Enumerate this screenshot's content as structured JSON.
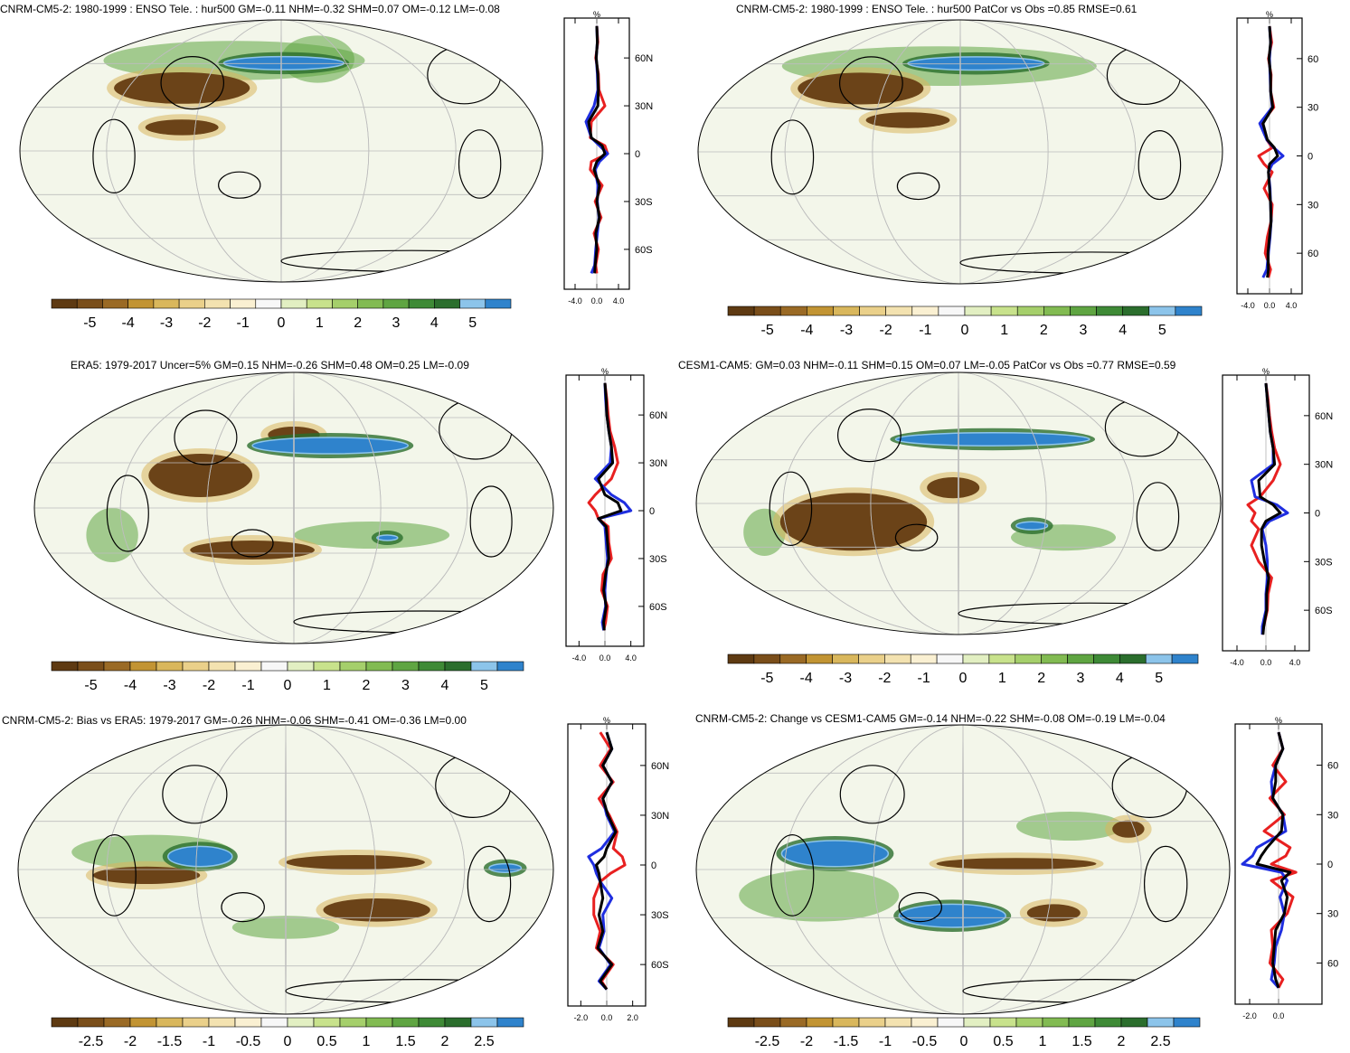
{
  "palette": {
    "colors": [
      "#5e3a12",
      "#7a4e1a",
      "#9a6a25",
      "#c29433",
      "#d9b75c",
      "#ead08a",
      "#f3e2b0",
      "#faf0d2",
      "#f7f7f7",
      "#e2efc2",
      "#c8e28c",
      "#a5cf6b",
      "#82bb52",
      "#5fa542",
      "#3e8a36",
      "#2b6e2d",
      "#8cc4ea",
      "#2f83cc"
    ],
    "neg_blob": "#6b4318",
    "pos_blob": "#2f83cc",
    "green_band": "#5fa542",
    "ocean_base": "#f3f6ea",
    "grid": "#bdbdbd",
    "profile_red": "#e82020",
    "profile_blue": "#1f2ee0",
    "profile_black": "#000000"
  },
  "panels": [
    {
      "id": "model",
      "title": "CNRM-CM5-2: 1980-1999 : ENSO Tele. : hur500 GM=-0.11 NHM=-0.32 SHM=0.07 OM=-0.12 LM=-0.08",
      "colorbar_labels": [
        "-5",
        "-4",
        "-3",
        "-2",
        "-1",
        "0",
        "1",
        "2",
        "3",
        "4",
        "5"
      ],
      "profile": {
        "unit": "%",
        "xticks": [
          "-4.0",
          "0.0",
          "4.0"
        ],
        "yticks": [
          "60N",
          "30N",
          "0",
          "30S",
          "60S"
        ],
        "xlim": [
          -6,
          6
        ]
      }
    },
    {
      "id": "model_patcor",
      "title": "CNRM-CM5-2: 1980-1999 : ENSO Tele. : hur500 PatCor vs Obs =0.85 RMSE=0.61",
      "colorbar_labels": [
        "-5",
        "-4",
        "-3",
        "-2",
        "-1",
        "0",
        "1",
        "2",
        "3",
        "4",
        "5"
      ],
      "profile": {
        "unit": "%",
        "xticks": [
          "-4.0",
          "0.0",
          "4.0"
        ],
        "yticks": [
          "60",
          "30",
          "0",
          "30",
          "60"
        ],
        "xlim": [
          -6,
          6
        ]
      }
    },
    {
      "id": "era5",
      "title": "ERA5: 1979-2017 Uncer=5% GM=0.15 NHM=-0.26 SHM=0.48 OM=0.25 LM=-0.09",
      "colorbar_labels": [
        "-5",
        "-4",
        "-3",
        "-2",
        "-1",
        "0",
        "1",
        "2",
        "3",
        "4",
        "5"
      ],
      "profile": {
        "unit": "%",
        "xticks": [
          "-4.0",
          "0.0",
          "4.0"
        ],
        "yticks": [
          "60N",
          "30N",
          "0",
          "30S",
          "60S"
        ],
        "xlim": [
          -6,
          6
        ]
      }
    },
    {
      "id": "cesm",
      "title": "CESM1-CAM5: GM=0.03 NHM=-0.11 SHM=0.15 OM=0.07 LM=-0.05 PatCor vs Obs =0.77 RMSE=0.59",
      "colorbar_labels": [
        "-5",
        "-4",
        "-3",
        "-2",
        "-1",
        "0",
        "1",
        "2",
        "3",
        "4",
        "5"
      ],
      "profile": {
        "unit": "%",
        "xticks": [
          "-4.0",
          "0.0",
          "4.0"
        ],
        "yticks": [
          "60N",
          "30N",
          "0",
          "30S",
          "60S"
        ],
        "xlim": [
          -6,
          6
        ]
      }
    },
    {
      "id": "bias",
      "title": "CNRM-CM5-2: Bias vs ERA5: 1979-2017 GM=-0.26 NHM=-0.06 SHM=-0.41 OM=-0.36 LM=0.00",
      "colorbar_labels": [
        "-2.5",
        "-2",
        "-1.5",
        "-1",
        "-0.5",
        "0",
        "0.5",
        "1",
        "1.5",
        "2",
        "2.5"
      ],
      "profile": {
        "unit": "%",
        "xticks": [
          "-2.0",
          "0.0",
          "2.0"
        ],
        "yticks": [
          "60N",
          "30N",
          "0",
          "30S",
          "60S"
        ],
        "xlim": [
          -3,
          3
        ]
      }
    },
    {
      "id": "change",
      "title": "CNRM-CM5-2: Change vs CESM1-CAM5 GM=-0.14 NHM=-0.22 SHM=-0.08 OM=-0.19 LM=-0.04",
      "colorbar_labels": [
        "-2.5",
        "-2",
        "-1.5",
        "-1",
        "-0.5",
        "0",
        "0.5",
        "1",
        "1.5",
        "2",
        "2.5"
      ],
      "profile": {
        "unit": "%",
        "xticks": [
          "-2.0",
          "0.0"
        ],
        "yticks": [
          "60",
          "30",
          "0",
          "30",
          "60"
        ],
        "xlim": [
          -3,
          3
        ]
      }
    }
  ],
  "chart_data": [
    {
      "type": "heatmap",
      "title": "CNRM-CM5-2: 1980-1999 : ENSO Tele. : hur500 GM=-0.11 NHM=-0.32 SHM=0.07 OM=-0.12 LM=-0.08",
      "colorbar": [
        "-5",
        "-4",
        "-3",
        "-2",
        "-1",
        "0",
        "1",
        "2",
        "3",
        "4",
        "5"
      ],
      "zonal_mean_profile": {
        "lat": [
          80,
          70,
          60,
          50,
          40,
          30,
          20,
          10,
          5,
          0,
          -5,
          -10,
          -20,
          -30,
          -40,
          -50,
          -60,
          -70,
          -75
        ],
        "red": [
          0,
          0.2,
          -0.2,
          0.3,
          0.4,
          1.5,
          -1,
          -1.2,
          1.5,
          2,
          -1,
          -1.2,
          1,
          -0.3,
          0.8,
          -0.5,
          0.3,
          -0.2,
          0
        ],
        "blue": [
          0,
          0.1,
          -0.1,
          0.1,
          0.2,
          -0.5,
          -2,
          -1,
          0.5,
          2,
          0.5,
          -0.3,
          0.2,
          0.1,
          0.4,
          0.1,
          -0.2,
          -0.4,
          -1
        ],
        "black": [
          0,
          0.1,
          -0.1,
          0.2,
          0.3,
          0.2,
          -1.5,
          -1,
          1,
          1.5,
          0,
          -0.5,
          0.5,
          0,
          0.5,
          -0.2,
          0,
          -0.3,
          -0.4
        ]
      }
    },
    {
      "type": "heatmap",
      "title": "CNRM-CM5-2: 1980-1999 : ENSO Tele. : hur500 PatCor vs Obs =0.85 RMSE=0.61",
      "colorbar": [
        "-5",
        "-4",
        "-3",
        "-2",
        "-1",
        "0",
        "1",
        "2",
        "3",
        "4",
        "5"
      ],
      "zonal_mean_profile": {
        "lat": [
          80,
          70,
          60,
          50,
          40,
          30,
          20,
          10,
          5,
          0,
          -5,
          -10,
          -20,
          -30,
          -40,
          -50,
          -60,
          -70,
          -75
        ],
        "red": [
          0,
          0.4,
          -0.2,
          0.3,
          0.2,
          0.8,
          -1.5,
          -0.5,
          0.5,
          -2,
          -1,
          0.5,
          -1,
          0.5,
          0.3,
          -0.4,
          -0.8,
          0.2,
          -0.2
        ],
        "blue": [
          0,
          0.2,
          0,
          0.1,
          0.2,
          0.5,
          -1.8,
          -0.5,
          0.8,
          2.5,
          0.5,
          -0.2,
          0.1,
          0.2,
          0.3,
          0.1,
          -0.2,
          -0.5,
          -1.2
        ],
        "black": [
          0,
          0.2,
          -0.1,
          0.2,
          0.2,
          0.6,
          -1.2,
          -0.4,
          0.9,
          1.5,
          0,
          -0.2,
          0,
          0.2,
          0.3,
          0,
          -0.3,
          -0.2,
          -0.4
        ]
      }
    },
    {
      "type": "heatmap",
      "title": "ERA5: 1979-2017 Uncer=5% GM=0.15 NHM=-0.26 SHM=0.48 OM=0.25 LM=-0.09",
      "colorbar": [
        "-5",
        "-4",
        "-3",
        "-2",
        "-1",
        "0",
        "1",
        "2",
        "3",
        "4",
        "5"
      ],
      "zonal_mean_profile": {
        "lat": [
          80,
          70,
          60,
          50,
          40,
          30,
          20,
          10,
          5,
          0,
          -5,
          -10,
          -20,
          -30,
          -40,
          -50,
          -60,
          -70,
          -75
        ],
        "red": [
          0,
          0.3,
          0.5,
          0.8,
          1.5,
          2,
          1,
          -1.5,
          -2.5,
          -1.5,
          -1,
          0.5,
          0.6,
          1,
          -0.3,
          -0.5,
          0.4,
          0.1,
          -0.2
        ],
        "blue": [
          0,
          0.1,
          0.3,
          0.6,
          1,
          0.8,
          -1.5,
          1,
          3,
          4,
          -1,
          0,
          0.2,
          0.4,
          0.2,
          0,
          0.1,
          -0.4,
          -0.2
        ],
        "black": [
          0,
          0.2,
          0.3,
          0.6,
          1,
          1.2,
          -1,
          0,
          2,
          2.5,
          -1,
          0.2,
          0.4,
          0.6,
          0.1,
          -0.2,
          0.2,
          -0.2,
          -0.1
        ]
      }
    },
    {
      "type": "heatmap",
      "title": "CESM1-CAM5: GM=0.03 NHM=-0.11 SHM=0.15 OM=0.07 LM=-0.05 PatCor vs Obs =0.77 RMSE=0.59",
      "colorbar": [
        "-5",
        "-4",
        "-3",
        "-2",
        "-1",
        "0",
        "1",
        "2",
        "3",
        "4",
        "5"
      ],
      "zonal_mean_profile": {
        "lat": [
          80,
          70,
          60,
          50,
          40,
          30,
          20,
          10,
          5,
          0,
          -5,
          -10,
          -20,
          -30,
          -40,
          -50,
          -60,
          -70,
          -75
        ],
        "red": [
          0,
          0.3,
          0.5,
          0.8,
          1.2,
          2,
          1,
          -0.8,
          -2.5,
          -1.5,
          -2,
          -1,
          -2,
          -1,
          0.8,
          0.3,
          0.2,
          -0.3,
          -0.5
        ],
        "blue": [
          0,
          0.2,
          0.4,
          0.6,
          1,
          1,
          -2,
          -1.5,
          1.5,
          3,
          0.5,
          -0.5,
          0,
          0.2,
          0.2,
          0,
          0,
          -0.5,
          -0.5
        ],
        "black": [
          0,
          0.2,
          0.4,
          0.6,
          1,
          1.2,
          -1,
          -0.8,
          1,
          2,
          0,
          -0.6,
          -0.6,
          -0.2,
          0.4,
          0.1,
          0.1,
          -0.3,
          -0.4
        ]
      }
    },
    {
      "type": "heatmap",
      "title": "CNRM-CM5-2: Bias vs ERA5: 1979-2017 GM=-0.26 NHM=-0.06 SHM=-0.41 OM=-0.36 LM=0.00",
      "colorbar": [
        "-2.5",
        "-2",
        "-1.5",
        "-1",
        "-0.5",
        "0",
        "0.5",
        "1",
        "1.5",
        "2",
        "2.5"
      ],
      "zonal_mean_profile": {
        "lat": [
          80,
          70,
          60,
          50,
          40,
          30,
          20,
          10,
          5,
          0,
          -5,
          -10,
          -20,
          -30,
          -40,
          -50,
          -60,
          -70,
          -75
        ],
        "red": [
          -0.5,
          0.3,
          -0.5,
          0.5,
          -0.6,
          0.2,
          0.8,
          0.5,
          1.2,
          1.4,
          0.3,
          -0.5,
          -1,
          -1,
          -0.5,
          -0.8,
          0.5,
          -0.4,
          0
        ],
        "blue": [
          0,
          0.4,
          -0.3,
          0.4,
          -0.3,
          0,
          0.6,
          -0.4,
          -1.4,
          -1,
          -0.8,
          -0.5,
          0.4,
          -0.3,
          -0.2,
          -0.6,
          0.3,
          -0.6,
          0
        ],
        "black": [
          0,
          0.4,
          -0.3,
          0.4,
          -0.3,
          0.1,
          0.7,
          0,
          -0.2,
          -0.8,
          -0.6,
          -0.5,
          -0.3,
          -0.6,
          -0.3,
          -0.7,
          0.4,
          -0.5,
          0
        ]
      }
    },
    {
      "type": "heatmap",
      "title": "CNRM-CM5-2: Change vs CESM1-CAM5 GM=-0.14 NHM=-0.22 SHM=-0.08 OM=-0.19 LM=-0.04",
      "colorbar": [
        "-2.5",
        "-2",
        "-1.5",
        "-1",
        "-0.5",
        "0",
        "0.5",
        "1",
        "1.5",
        "2",
        "2.5"
      ],
      "zonal_mean_profile": {
        "lat": [
          80,
          70,
          60,
          50,
          40,
          30,
          20,
          10,
          5,
          0,
          -5,
          -10,
          -20,
          -30,
          -40,
          -50,
          -60,
          -70,
          -75
        ],
        "red": [
          0,
          0.3,
          -0.4,
          0.5,
          -0.6,
          0.4,
          -1,
          0.8,
          0.5,
          -0.5,
          1.2,
          -0.5,
          1,
          0.6,
          -0.5,
          -0.4,
          -0.6,
          0.3,
          0
        ],
        "blue": [
          0,
          0.3,
          -0.2,
          -0.5,
          -0.4,
          0.3,
          0.5,
          -1.5,
          -1.8,
          -2.5,
          0.2,
          0.6,
          0.1,
          0.4,
          0.2,
          -0.2,
          -0.3,
          -0.5,
          0
        ],
        "black": [
          0,
          0.3,
          -0.2,
          -0.2,
          -0.4,
          0.3,
          0.2,
          -0.8,
          -1.2,
          -1.5,
          0.8,
          0.2,
          0.6,
          0.4,
          -0.2,
          -0.3,
          -0.4,
          -0.2,
          0
        ]
      }
    }
  ]
}
